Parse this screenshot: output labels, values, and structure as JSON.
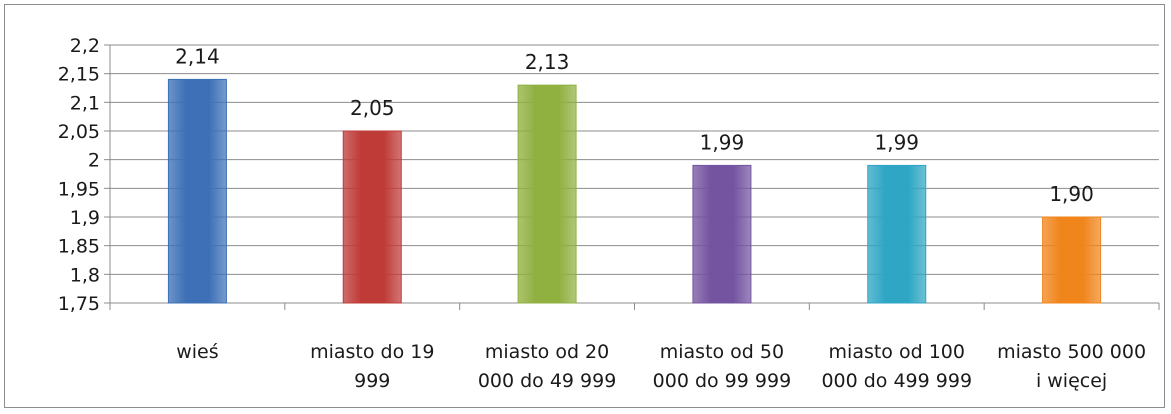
{
  "chart_data": {
    "type": "bar",
    "categories": [
      [
        "wieś"
      ],
      [
        "miasto do 19",
        "999"
      ],
      [
        "miasto od 20",
        "000 do 49 999"
      ],
      [
        "miasto od 50",
        "000 do 99 999"
      ],
      [
        "miasto od 100",
        "000 do 499 999"
      ],
      [
        "miasto 500 000",
        "i więcej"
      ]
    ],
    "values": [
      2.14,
      2.05,
      2.13,
      1.99,
      1.99,
      1.9
    ],
    "data_labels": [
      "2,14",
      "2,05",
      "2,13",
      "1,99",
      "1,99",
      "1,90"
    ],
    "colors": [
      "#3d70b6",
      "#bf3b38",
      "#90b040",
      "#7454a0",
      "#2ea6c4",
      "#f0851c"
    ],
    "ylim": [
      1.75,
      2.2
    ],
    "y_ticks": [
      1.75,
      1.8,
      1.85,
      1.9,
      1.95,
      2.0,
      2.05,
      2.1,
      2.15,
      2.2
    ],
    "y_tick_labels": [
      "1,75",
      "1,8",
      "1,85",
      "1,9",
      "1,95",
      "2",
      "2,05",
      "2,1",
      "2,15",
      "2,2"
    ],
    "grid": true,
    "legend": "none",
    "title": "",
    "xlabel": "",
    "ylabel": ""
  }
}
